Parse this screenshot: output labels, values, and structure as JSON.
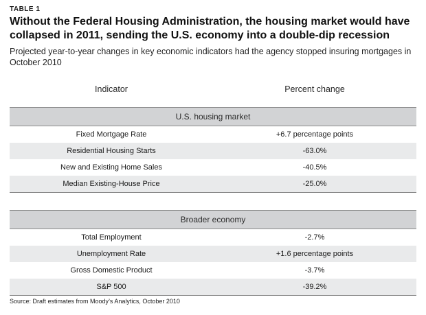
{
  "table_label": "TABLE 1",
  "title": "Without the Federal Housing Administration, the housing market would have collapsed in 2011, sending the U.S. economy into a double-dip recession",
  "subtitle": "Projected year-to-year changes in key economic indicators had the agency stopped insuring mortgages in October 2010",
  "source": "Source: Draft estimates from Moody’s Analytics, October 2010",
  "chart_data": {
    "type": "table",
    "title": "Without the Federal Housing Administration, the housing market would have collapsed in 2011, sending the U.S. economy into a double-dip recession",
    "columns": [
      "Indicator",
      "Percent change"
    ],
    "sections": [
      {
        "name": "U.S. housing market",
        "rows": [
          {
            "indicator": "Fixed Mortgage Rate",
            "change": "+6.7 percentage points"
          },
          {
            "indicator": "Residential Housing Starts",
            "change": "-63.0%"
          },
          {
            "indicator": "New and Existing Home Sales",
            "change": "-40.5%"
          },
          {
            "indicator": "Median Existing-House Price",
            "change": "-25.0%"
          }
        ]
      },
      {
        "name": "Broader economy",
        "rows": [
          {
            "indicator": "Total Employment",
            "change": "-2.7%"
          },
          {
            "indicator": "Unemployment Rate",
            "change": "+1.6 percentage points"
          },
          {
            "indicator": "Gross Domestic Product",
            "change": "-3.7%"
          },
          {
            "indicator": "S&P 500",
            "change": "-39.2%"
          }
        ]
      }
    ]
  }
}
